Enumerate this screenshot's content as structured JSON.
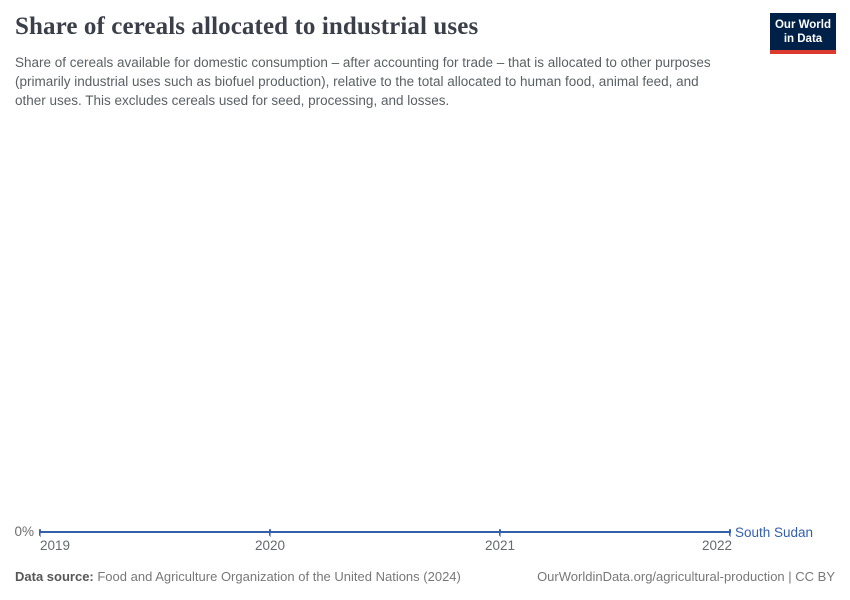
{
  "header": {
    "title": "Share of cereals allocated to industrial uses",
    "subtitle": "Share of cereals available for domestic consumption – after accounting for trade – that is allocated to other purposes (primarily industrial uses such as biofuel production), relative to the total allocated to human food, animal feed, and other uses. This excludes cereals used for seed, processing, and losses.",
    "logo": {
      "line1": "Our World",
      "line2": "in Data"
    }
  },
  "chart_data": {
    "type": "line",
    "title": "Share of cereals allocated to industrial uses",
    "x": [
      2019,
      2020,
      2021,
      2022
    ],
    "xticks": [
      "2019",
      "2020",
      "2021",
      "2022"
    ],
    "yticks": [
      "0%"
    ],
    "series": [
      {
        "name": "South Sudan",
        "values": [
          0,
          0,
          0,
          0
        ],
        "color": "#3360a9"
      }
    ],
    "unit": "%",
    "ylim": [
      0,
      0
    ],
    "xlabel": "",
    "ylabel": "",
    "grid": false,
    "legend_position": "right-of-line"
  },
  "footer": {
    "datasource_label": "Data source:",
    "datasource_value": " Food and Agriculture Organization of the United Nations (2024)",
    "link": "OurWorldinData.org/agricultural-production | CC BY"
  },
  "colors": {
    "accent_line": "#3360a9",
    "logo_bg": "#002147",
    "logo_red": "#dc3a2f",
    "title_text": "#3a3f4a",
    "subtitle_text": "#5b6064",
    "tick_text": "#666a6e"
  }
}
